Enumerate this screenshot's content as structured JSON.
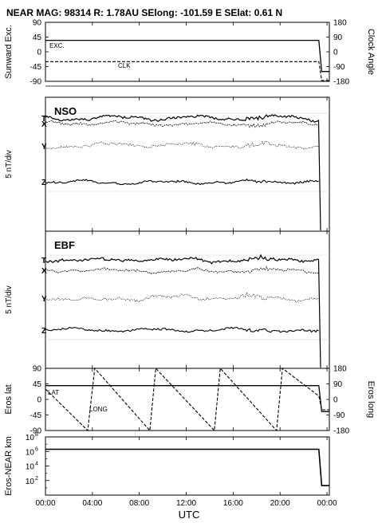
{
  "header": {
    "title": "NEAR MAG: 98314  R: 1.78AU  SElong: -101.59 E  SElat:    0.61 N"
  },
  "x_axis": {
    "label": "UTC",
    "ticks": [
      "00:00",
      "04:00",
      "08:00",
      "12:00",
      "16:00",
      "20:00",
      "00:00"
    ]
  },
  "chart_data": [
    {
      "type": "line",
      "panel": "sunward-clock",
      "ylabel_left": "Sunward Exc.",
      "ylabel_right": "Clock Angle",
      "left_ticks": [
        "90",
        "45",
        "0",
        "-45",
        "-90"
      ],
      "right_ticks": [
        "180",
        "90",
        "0",
        "-90",
        "-180"
      ],
      "ylim_left": [
        -90,
        90
      ],
      "ylim_right": [
        -180,
        180
      ],
      "x_hours": [
        0,
        4,
        8,
        12,
        16,
        20,
        24
      ],
      "series": [
        {
          "name": "EXC.",
          "style": "solid",
          "axis": "left",
          "x": [
            0,
            23.3,
            23.55,
            24.2
          ],
          "y": [
            35,
            35,
            -60,
            -60
          ]
        },
        {
          "name": "CLK",
          "style": "dashed",
          "axis": "right",
          "x": [
            0,
            23.3,
            23.55,
            24.2
          ],
          "y": [
            -60,
            -60,
            -175,
            -175
          ]
        }
      ]
    },
    {
      "type": "line",
      "panel": "NSO",
      "panel_label": "NSO",
      "ylabel": "5 nT/div",
      "series_labels": [
        "T",
        "X",
        "Y",
        "Z"
      ]
    },
    {
      "type": "line",
      "panel": "EBF",
      "panel_label": "EBF",
      "ylabel": "5 nT/div",
      "series_labels": [
        "T",
        "X",
        "Y",
        "Z"
      ]
    },
    {
      "type": "line",
      "panel": "eros-lat-long",
      "ylabel_left": "Eros lat",
      "ylabel_right": "Eros long",
      "left_ticks": [
        "90",
        "45",
        "0",
        "-45",
        "-90"
      ],
      "right_ticks": [
        "180",
        "90",
        "0",
        "-90",
        "-180"
      ],
      "ylim_left": [
        -90,
        90
      ],
      "ylim_right": [
        -180,
        180
      ],
      "series": [
        {
          "name": "LAT",
          "style": "solid",
          "axis": "left",
          "x": [
            0,
            23.3,
            23.55,
            24.2
          ],
          "y": [
            40,
            40,
            -35,
            -35
          ]
        },
        {
          "name": "LONG",
          "style": "dashed",
          "axis": "right",
          "x": [
            0,
            3.6,
            4.2,
            8.9,
            9.4,
            14.4,
            14.9,
            19.7,
            20.2,
            23.3,
            23.55,
            24.2
          ],
          "y": [
            60,
            -180,
            180,
            -180,
            180,
            -180,
            180,
            -180,
            180,
            20,
            -60,
            -60
          ]
        }
      ]
    },
    {
      "type": "line",
      "panel": "eros-near-range",
      "ylabel": "Eros-NEAR km",
      "scale": "log",
      "left_ticks": [
        "10^8",
        "10^6",
        "10^4",
        "10^2"
      ],
      "ylim": [
        "10^0",
        "10^8"
      ],
      "series": [
        {
          "name": "",
          "style": "solid",
          "x": [
            0,
            23.3,
            23.55,
            24.2
          ],
          "y": [
            "2x10^6",
            "2x10^6",
            "2x10^1",
            "2x10^1"
          ]
        }
      ]
    }
  ]
}
